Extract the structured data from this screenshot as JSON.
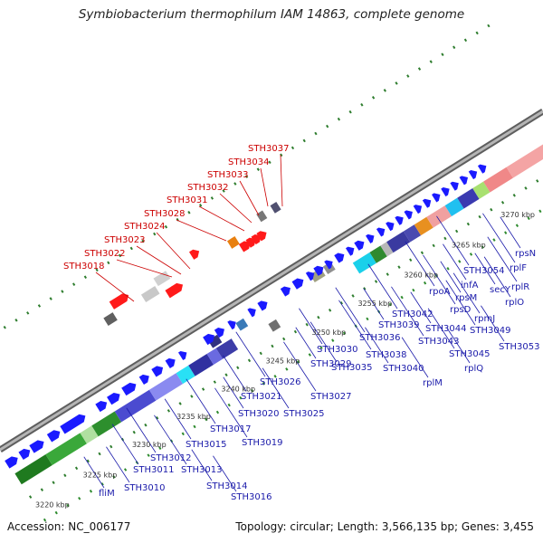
{
  "title": "Symbiobacterium thermophilum IAM 14863, complete genome",
  "accession": "Accession: NC_006177",
  "summary": "Topology: circular; Length: 3,566,135 bp; Genes: 3,455",
  "colors": {
    "backbone": "#8a8a8a",
    "forward_gene": "#1a1aff",
    "highlight_gene": "#ff1a1a",
    "label_red": "#cc0000",
    "label_blue": "#1a1aaa",
    "tick_green": "#2e7d2e"
  },
  "ticks": [
    "3220 kbp",
    "3225 kbp",
    "3230 kbp",
    "3235 kbp",
    "3240 kbp",
    "3245 kbp",
    "3250 kbp",
    "3255 kbp",
    "3260 kbp",
    "3265 kbp",
    "3270 kbp"
  ],
  "red_labels": [
    "STH3018",
    "STH3022",
    "STH3023",
    "STH3024",
    "STH3028",
    "STH3031",
    "STH3032",
    "STH3033",
    "STH3034",
    "STH3037"
  ],
  "blue_labels": [
    "fliM",
    "STH3010",
    "STH3011",
    "STH3012",
    "STH3013",
    "STH3014",
    "STH3016",
    "STH3015",
    "STH3017",
    "STH3019",
    "STH3020",
    "STH3021",
    "STH3025",
    "STH3026",
    "STH3027",
    "STH3029",
    "STH3030",
    "STH3035",
    "STH3036",
    "STH3038",
    "STH3039",
    "STH3040",
    "rplM",
    "STH3042",
    "STH3043",
    "STH3044",
    "rplQ",
    "STH3045",
    "rpoA",
    "rpsD",
    "rpsM",
    "infA",
    "rpmJ",
    "STH3049",
    "STH3054",
    "secY",
    "STH3053",
    "rplO",
    "rplR",
    "rplF",
    "rpsN"
  ]
}
